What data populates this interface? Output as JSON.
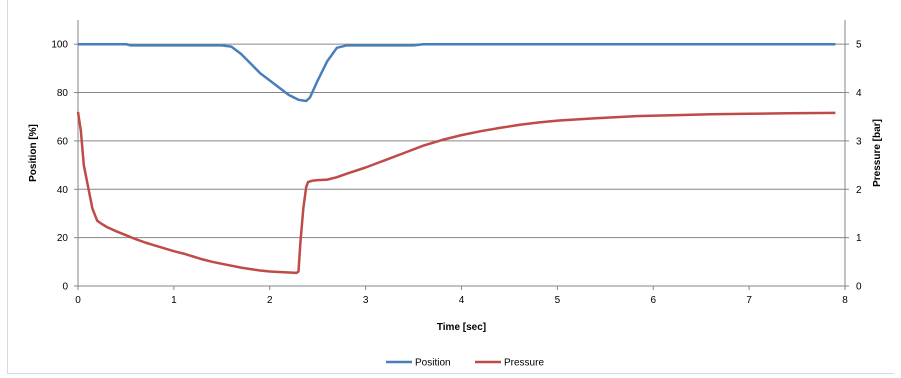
{
  "chart_data": {
    "type": "line",
    "title": "",
    "xlabel": "Time [sec]",
    "ylabel_left": "Position [%]",
    "ylabel_right": "Pressure [bar]",
    "xlim": [
      0,
      8
    ],
    "ylim_left": [
      0,
      110
    ],
    "ylim_right": [
      0,
      5.5
    ],
    "x_ticks": [
      "0",
      "1",
      "2",
      "3",
      "4",
      "5",
      "6",
      "7",
      "8"
    ],
    "y_ticks_left": [
      "0",
      "20",
      "40",
      "60",
      "80",
      "100"
    ],
    "y_ticks_right": [
      "0",
      "1",
      "2",
      "3",
      "4",
      "5"
    ],
    "grid": "horizontal",
    "legend_position": "bottom",
    "series": [
      {
        "name": "Position",
        "axis": "left",
        "color": "#4a7ebb",
        "x": [
          0,
          0.5,
          0.55,
          1.5,
          1.6,
          1.7,
          1.8,
          1.9,
          2.0,
          2.1,
          2.2,
          2.3,
          2.38,
          2.42,
          2.5,
          2.6,
          2.7,
          2.8,
          3.0,
          3.5,
          3.6,
          4.0,
          5.0,
          6.0,
          7.0,
          7.9
        ],
        "y": [
          100,
          100,
          99.5,
          99.5,
          99,
          96,
          92,
          88,
          85,
          82,
          79,
          77,
          76.5,
          78,
          85,
          93,
          98.5,
          99.5,
          99.5,
          99.5,
          100,
          100,
          100,
          100,
          100,
          100
        ]
      },
      {
        "name": "Pressure",
        "axis": "right",
        "color": "#be4b48",
        "x": [
          0,
          0.03,
          0.06,
          0.1,
          0.15,
          0.2,
          0.25,
          0.3,
          0.4,
          0.5,
          0.6,
          0.7,
          0.8,
          0.9,
          1.0,
          1.1,
          1.2,
          1.3,
          1.4,
          1.5,
          1.6,
          1.7,
          1.8,
          1.9,
          2.0,
          2.1,
          2.2,
          2.28,
          2.3,
          2.32,
          2.35,
          2.38,
          2.4,
          2.45,
          2.5,
          2.6,
          2.7,
          2.8,
          3.0,
          3.2,
          3.4,
          3.6,
          3.8,
          4.0,
          4.2,
          4.4,
          4.6,
          4.8,
          5.0,
          5.4,
          5.8,
          6.2,
          6.6,
          7.0,
          7.4,
          7.9
        ],
        "y": [
          3.6,
          3.2,
          2.5,
          2.1,
          1.6,
          1.35,
          1.28,
          1.22,
          1.13,
          1.05,
          0.97,
          0.9,
          0.84,
          0.78,
          0.72,
          0.67,
          0.61,
          0.55,
          0.5,
          0.46,
          0.42,
          0.38,
          0.35,
          0.32,
          0.3,
          0.29,
          0.28,
          0.27,
          0.3,
          0.9,
          1.6,
          2.05,
          2.15,
          2.18,
          2.19,
          2.2,
          2.25,
          2.32,
          2.45,
          2.6,
          2.75,
          2.9,
          3.02,
          3.12,
          3.2,
          3.27,
          3.33,
          3.38,
          3.42,
          3.47,
          3.51,
          3.53,
          3.55,
          3.56,
          3.57,
          3.58
        ]
      }
    ]
  }
}
